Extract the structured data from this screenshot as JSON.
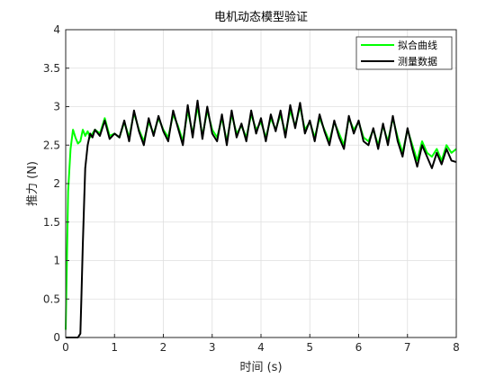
{
  "chart_data": {
    "type": "line",
    "title": "电机动态模型验证",
    "xlabel": "时间 (s)",
    "ylabel": "推力 (N)",
    "xlim": [
      0,
      8
    ],
    "ylim": [
      0,
      4
    ],
    "xticks": [
      "0",
      "1",
      "2",
      "3",
      "4",
      "5",
      "6",
      "7",
      "8"
    ],
    "yticks": [
      "0",
      "0.5",
      "1",
      "1.5",
      "2",
      "2.5",
      "3",
      "3.5",
      "4"
    ],
    "grid": true,
    "legend_position": "top-right",
    "series": [
      {
        "name": "拟合曲线",
        "color": "#00ff00",
        "x": [
          0.0,
          0.05,
          0.1,
          0.15,
          0.2,
          0.25,
          0.3,
          0.35,
          0.4,
          0.45,
          0.5,
          0.6,
          0.7,
          0.8,
          0.9,
          1.0,
          1.1,
          1.2,
          1.3,
          1.4,
          1.5,
          1.6,
          1.7,
          1.8,
          1.9,
          2.0,
          2.1,
          2.2,
          2.3,
          2.4,
          2.5,
          2.6,
          2.7,
          2.8,
          2.9,
          3.0,
          3.1,
          3.2,
          3.3,
          3.4,
          3.5,
          3.6,
          3.7,
          3.8,
          3.9,
          4.0,
          4.1,
          4.2,
          4.3,
          4.4,
          4.5,
          4.6,
          4.7,
          4.8,
          4.9,
          5.0,
          5.1,
          5.2,
          5.3,
          5.4,
          5.5,
          5.6,
          5.7,
          5.8,
          5.9,
          6.0,
          6.1,
          6.2,
          6.3,
          6.4,
          6.5,
          6.6,
          6.7,
          6.8,
          6.9,
          7.0,
          7.1,
          7.2,
          7.3,
          7.4,
          7.5,
          7.6,
          7.7,
          7.8,
          7.9,
          8.0
        ],
        "y": [
          0.1,
          1.9,
          2.45,
          2.7,
          2.6,
          2.52,
          2.55,
          2.7,
          2.62,
          2.68,
          2.6,
          2.7,
          2.65,
          2.85,
          2.62,
          2.65,
          2.6,
          2.8,
          2.6,
          2.92,
          2.7,
          2.55,
          2.8,
          2.65,
          2.85,
          2.7,
          2.6,
          2.9,
          2.75,
          2.55,
          2.95,
          2.65,
          3.0,
          2.62,
          2.95,
          2.7,
          2.6,
          2.85,
          2.55,
          2.9,
          2.65,
          2.75,
          2.6,
          2.9,
          2.7,
          2.8,
          2.6,
          2.85,
          2.7,
          2.9,
          2.65,
          2.95,
          2.75,
          3.0,
          2.7,
          2.8,
          2.6,
          2.85,
          2.7,
          2.55,
          2.8,
          2.65,
          2.5,
          2.85,
          2.7,
          2.8,
          2.6,
          2.55,
          2.7,
          2.5,
          2.75,
          2.55,
          2.85,
          2.6,
          2.4,
          2.7,
          2.5,
          2.3,
          2.55,
          2.4,
          2.35,
          2.45,
          2.3,
          2.5,
          2.4,
          2.45
        ]
      },
      {
        "name": "测量数据",
        "color": "#000000",
        "x": [
          0.0,
          0.1,
          0.2,
          0.25,
          0.3,
          0.32,
          0.35,
          0.38,
          0.4,
          0.45,
          0.5,
          0.55,
          0.6,
          0.7,
          0.8,
          0.9,
          1.0,
          1.1,
          1.2,
          1.3,
          1.4,
          1.5,
          1.6,
          1.7,
          1.8,
          1.9,
          2.0,
          2.1,
          2.2,
          2.3,
          2.4,
          2.5,
          2.6,
          2.7,
          2.8,
          2.9,
          3.0,
          3.1,
          3.2,
          3.3,
          3.4,
          3.5,
          3.6,
          3.7,
          3.8,
          3.9,
          4.0,
          4.1,
          4.2,
          4.3,
          4.4,
          4.5,
          4.6,
          4.7,
          4.8,
          4.9,
          5.0,
          5.1,
          5.2,
          5.3,
          5.4,
          5.5,
          5.6,
          5.7,
          5.8,
          5.9,
          6.0,
          6.1,
          6.2,
          6.3,
          6.4,
          6.5,
          6.6,
          6.7,
          6.8,
          6.9,
          7.0,
          7.1,
          7.2,
          7.3,
          7.4,
          7.5,
          7.6,
          7.7,
          7.8,
          7.9,
          8.0
        ],
        "y": [
          0.0,
          0.0,
          0.0,
          0.0,
          0.05,
          0.5,
          1.2,
          1.8,
          2.2,
          2.5,
          2.65,
          2.6,
          2.7,
          2.62,
          2.82,
          2.58,
          2.65,
          2.6,
          2.82,
          2.55,
          2.95,
          2.68,
          2.5,
          2.85,
          2.62,
          2.88,
          2.68,
          2.55,
          2.95,
          2.72,
          2.5,
          3.02,
          2.6,
          3.08,
          2.58,
          3.0,
          2.65,
          2.55,
          2.9,
          2.5,
          2.95,
          2.6,
          2.78,
          2.55,
          2.95,
          2.65,
          2.85,
          2.55,
          2.9,
          2.68,
          2.95,
          2.6,
          3.02,
          2.72,
          3.05,
          2.65,
          2.82,
          2.55,
          2.9,
          2.68,
          2.5,
          2.82,
          2.6,
          2.45,
          2.88,
          2.65,
          2.82,
          2.55,
          2.5,
          2.72,
          2.45,
          2.78,
          2.5,
          2.88,
          2.55,
          2.35,
          2.72,
          2.45,
          2.22,
          2.5,
          2.35,
          2.2,
          2.4,
          2.25,
          2.45,
          2.3,
          2.28
        ]
      }
    ]
  }
}
